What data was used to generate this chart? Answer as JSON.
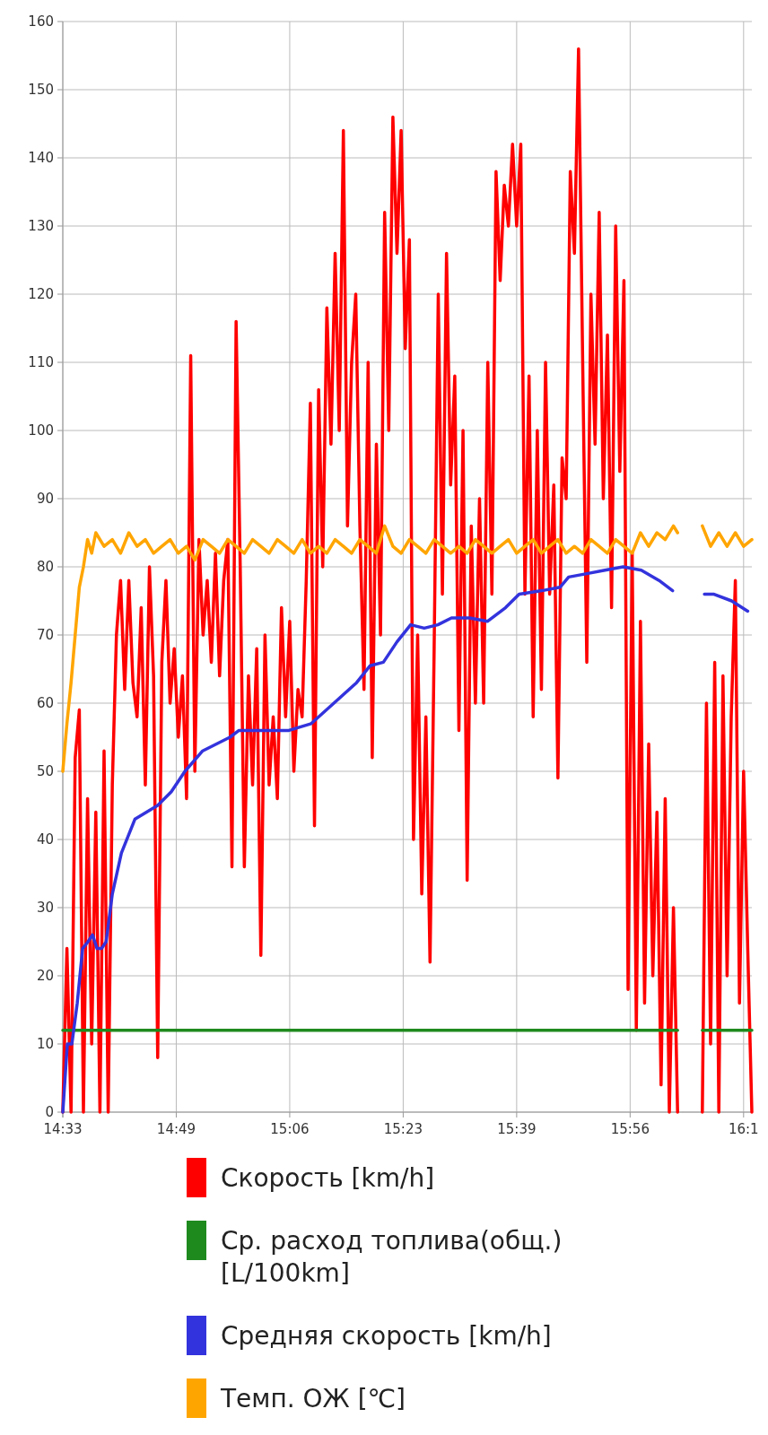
{
  "chart_data": {
    "type": "line",
    "xlim": [
      14.55,
      16.22
    ],
    "ylim": [
      0,
      160
    ],
    "xticks": [
      {
        "value": 14.55,
        "label": "14:33"
      },
      {
        "value": 14.825,
        "label": "14:49"
      },
      {
        "value": 15.1,
        "label": "15:06"
      },
      {
        "value": 15.375,
        "label": "15:23"
      },
      {
        "value": 15.65,
        "label": "15:39"
      },
      {
        "value": 15.925,
        "label": "15:56"
      },
      {
        "value": 16.2,
        "label": "16:1"
      }
    ],
    "yticks": [
      0,
      10,
      20,
      30,
      40,
      50,
      60,
      70,
      80,
      90,
      100,
      110,
      120,
      130,
      140,
      150,
      160
    ],
    "grid": true,
    "legend": "bottom",
    "series": [
      {
        "name": "Скорость [km/h]",
        "color": "#ff0000",
        "x": [
          14.55,
          14.56,
          14.57,
          14.58,
          14.59,
          14.6,
          14.61,
          14.62,
          14.63,
          14.64,
          14.65,
          14.66,
          14.67,
          14.68,
          14.69,
          14.7,
          14.71,
          14.72,
          14.73,
          14.74,
          14.75,
          14.76,
          14.77,
          14.78,
          14.79,
          14.8,
          14.81,
          14.82,
          14.83,
          14.84,
          14.85,
          14.86,
          14.87,
          14.88,
          14.89,
          14.9,
          14.91,
          14.92,
          14.93,
          14.94,
          14.95,
          14.96,
          14.97,
          14.98,
          14.99,
          15.0,
          15.01,
          15.02,
          15.03,
          15.04,
          15.05,
          15.06,
          15.07,
          15.08,
          15.09,
          15.1,
          15.11,
          15.12,
          15.13,
          15.14,
          15.15,
          15.16,
          15.17,
          15.18,
          15.19,
          15.2,
          15.21,
          15.22,
          15.23,
          15.24,
          15.25,
          15.26,
          15.27,
          15.28,
          15.29,
          15.3,
          15.31,
          15.32,
          15.33,
          15.34,
          15.35,
          15.36,
          15.37,
          15.38,
          15.39,
          15.4,
          15.41,
          15.42,
          15.43,
          15.44,
          15.45,
          15.46,
          15.47,
          15.48,
          15.49,
          15.5,
          15.51,
          15.52,
          15.53,
          15.54,
          15.55,
          15.56,
          15.57,
          15.58,
          15.59,
          15.6,
          15.61,
          15.62,
          15.63,
          15.64,
          15.65,
          15.66,
          15.67,
          15.68,
          15.69,
          15.7,
          15.71,
          15.72,
          15.73,
          15.74,
          15.75,
          15.76,
          15.77,
          15.78,
          15.79,
          15.8,
          15.81,
          15.82,
          15.83,
          15.84,
          15.85,
          15.86,
          15.87,
          15.88,
          15.89,
          15.9,
          15.91,
          15.92,
          15.93,
          15.94,
          15.95,
          15.96,
          15.97,
          15.98,
          15.99,
          16.0,
          16.01,
          16.02,
          16.03,
          16.04,
          16.05,
          16.06,
          16.07,
          16.08,
          16.09,
          16.1,
          16.11,
          16.12,
          16.13,
          16.14,
          16.15,
          16.16,
          16.17,
          16.18,
          16.19,
          16.2,
          16.21,
          16.22
        ],
        "values": [
          0,
          24,
          0,
          52,
          59,
          0,
          46,
          10,
          44,
          0,
          53,
          0,
          48,
          70,
          78,
          62,
          78,
          63,
          58,
          74,
          48,
          80,
          64,
          8,
          66,
          78,
          60,
          68,
          55,
          64,
          46,
          111,
          50,
          84,
          70,
          78,
          66,
          82,
          64,
          78,
          84,
          36,
          116,
          80,
          36,
          64,
          48,
          68,
          23,
          70,
          48,
          58,
          46,
          74,
          58,
          72,
          50,
          62,
          58,
          78,
          104,
          42,
          106,
          80,
          118,
          98,
          126,
          100,
          144,
          86,
          110,
          120,
          86,
          62,
          110,
          52,
          98,
          70,
          132,
          100,
          146,
          126,
          144,
          112,
          128,
          40,
          70,
          32,
          58,
          22,
          68,
          120,
          76,
          126,
          92,
          108,
          56,
          100,
          34,
          86,
          60,
          90,
          60,
          110,
          76,
          138,
          122,
          136,
          130,
          142,
          130,
          142,
          76,
          108,
          58,
          100,
          62,
          110,
          76,
          92,
          49,
          96,
          90,
          138,
          126,
          156,
          110,
          66,
          120,
          98,
          132,
          90,
          114,
          74,
          130,
          94,
          122,
          18,
          82,
          12,
          72,
          16,
          54,
          20,
          44,
          4,
          46,
          0,
          30,
          0,
          null,
          null,
          null,
          null,
          null,
          0,
          60,
          10,
          66,
          0,
          64,
          20,
          58,
          78,
          16,
          50,
          24,
          0
        ]
      },
      {
        "name": "Ср. расход топлива(общ.) [L/100km]",
        "color": "#1e8a1e",
        "x": [
          14.55,
          16.04,
          16.07,
          16.1,
          16.22
        ],
        "values": [
          12,
          12,
          null,
          12,
          12
        ]
      },
      {
        "name": "Средняя скорость [km/h]",
        "color": "#3333dd",
        "x": [
          14.55,
          14.561,
          14.572,
          14.585,
          14.598,
          14.611,
          14.622,
          14.633,
          14.644,
          14.655,
          14.67,
          14.692,
          14.725,
          14.78,
          14.813,
          14.846,
          14.889,
          14.955,
          14.977,
          15.054,
          15.098,
          15.152,
          15.207,
          15.262,
          15.295,
          15.327,
          15.36,
          15.393,
          15.426,
          15.459,
          15.492,
          15.536,
          15.579,
          15.623,
          15.656,
          15.711,
          15.755,
          15.776,
          15.82,
          15.864,
          15.908,
          15.952,
          15.995,
          16.028,
          16.06,
          16.105,
          16.127,
          16.171,
          16.21
        ],
        "values": [
          0,
          10,
          10,
          16,
          24,
          25,
          26,
          24,
          24,
          25,
          32,
          38,
          43,
          45,
          47,
          50,
          53,
          55,
          56,
          56,
          56,
          57,
          60,
          63,
          65.5,
          66,
          69,
          71.5,
          71,
          71.5,
          72.5,
          72.5,
          72,
          74,
          76,
          76.5,
          77,
          78.5,
          79,
          79.5,
          80,
          79.5,
          78,
          76.5,
          null,
          76,
          76,
          75,
          73.5
        ]
      },
      {
        "name": "Темп. ОЖ [℃]",
        "color": "#ffa500",
        "x": [
          14.55,
          14.56,
          14.57,
          14.58,
          14.59,
          14.6,
          14.61,
          14.62,
          14.63,
          14.65,
          14.67,
          14.69,
          14.71,
          14.73,
          14.75,
          14.77,
          14.79,
          14.81,
          14.83,
          14.85,
          14.87,
          14.89,
          14.91,
          14.93,
          14.95,
          14.97,
          14.99,
          15.01,
          15.03,
          15.05,
          15.07,
          15.09,
          15.11,
          15.13,
          15.15,
          15.17,
          15.19,
          15.21,
          15.23,
          15.25,
          15.27,
          15.29,
          15.31,
          15.33,
          15.35,
          15.37,
          15.39,
          15.41,
          15.43,
          15.45,
          15.47,
          15.49,
          15.51,
          15.53,
          15.55,
          15.57,
          15.59,
          15.61,
          15.63,
          15.65,
          15.67,
          15.69,
          15.71,
          15.73,
          15.75,
          15.77,
          15.79,
          15.81,
          15.83,
          15.85,
          15.87,
          15.89,
          15.91,
          15.93,
          15.95,
          15.97,
          15.99,
          16.01,
          16.03,
          16.04,
          16.07,
          16.1,
          16.12,
          16.14,
          16.16,
          16.18,
          16.2,
          16.22
        ],
        "values": [
          50,
          57,
          63,
          70,
          77,
          80,
          84,
          82,
          85,
          83,
          84,
          82,
          85,
          83,
          84,
          82,
          83,
          84,
          82,
          83,
          81,
          84,
          83,
          82,
          84,
          83,
          82,
          84,
          83,
          82,
          84,
          83,
          82,
          84,
          82,
          83,
          82,
          84,
          83,
          82,
          84,
          83,
          82,
          86,
          83,
          82,
          84,
          83,
          82,
          84,
          83,
          82,
          83,
          82,
          84,
          83,
          82,
          83,
          84,
          82,
          83,
          84,
          82,
          83,
          84,
          82,
          83,
          82,
          84,
          83,
          82,
          84,
          83,
          82,
          85,
          83,
          85,
          84,
          86,
          85,
          null,
          86,
          83,
          85,
          83,
          85,
          83,
          84
        ]
      }
    ]
  }
}
